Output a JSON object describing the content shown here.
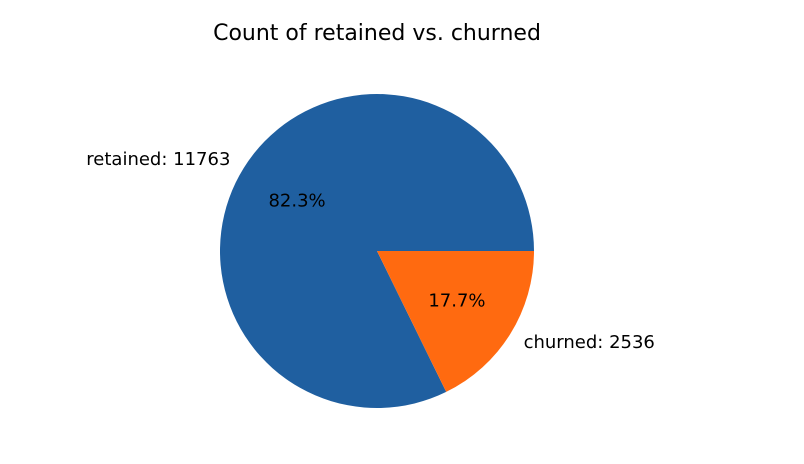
{
  "chart_data": {
    "type": "pie",
    "title": "Count of retained vs. churned",
    "slices": [
      {
        "label": "retained: 11763",
        "value": 11763,
        "percent_label": "82.3%",
        "color": "#1f5fa0"
      },
      {
        "label": "churned: 2536",
        "value": 2536,
        "percent_label": "17.7%",
        "color": "#ff6a10"
      }
    ],
    "start_angle_deg": 0,
    "direction": "counterclockwise"
  }
}
